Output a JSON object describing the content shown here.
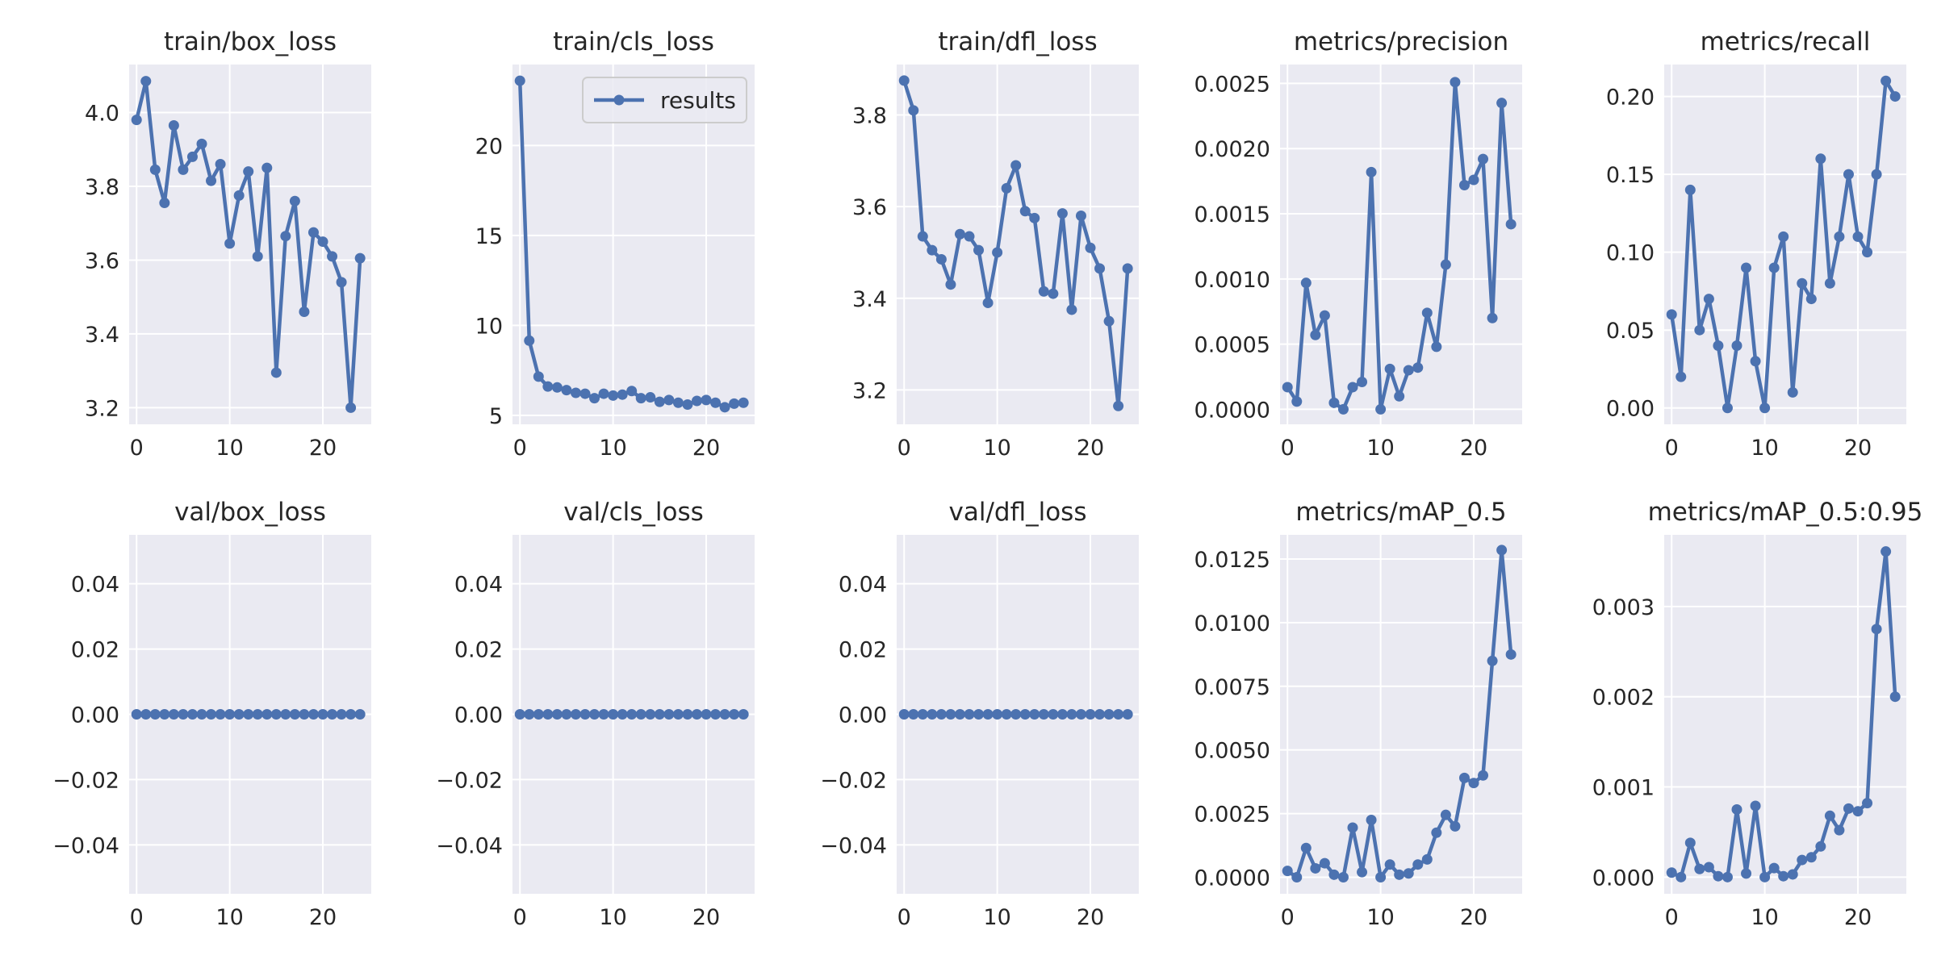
{
  "figure": {
    "line_color": "#4c72b0",
    "axes_bg": "#eaeaf2",
    "grid_color": "#ffffff",
    "legend": {
      "label": "results",
      "panel": 1,
      "placement": "upper right"
    }
  },
  "chart_data": [
    {
      "type": "line",
      "title": "train/box_loss",
      "series_label": "results",
      "x": [
        0,
        1,
        2,
        3,
        4,
        5,
        6,
        7,
        8,
        9,
        10,
        11,
        12,
        13,
        14,
        15,
        16,
        17,
        18,
        19,
        20,
        21,
        22,
        23,
        24
      ],
      "y": [
        3.98,
        4.085,
        3.845,
        3.755,
        3.965,
        3.845,
        3.88,
        3.915,
        3.815,
        3.86,
        3.645,
        3.775,
        3.84,
        3.61,
        3.85,
        3.295,
        3.665,
        3.76,
        3.46,
        3.675,
        3.65,
        3.61,
        3.54,
        3.2,
        3.605
      ],
      "xlim": [
        -0.8,
        25.2
      ],
      "ylim": [
        3.155,
        4.13
      ],
      "xticks": [
        0,
        10,
        20
      ],
      "xtick_labels": [
        "0",
        "10",
        "20"
      ],
      "yticks": [
        3.2,
        3.4,
        3.6,
        3.8,
        4.0
      ],
      "ytick_labels": [
        "3.2",
        "3.4",
        "3.6",
        "3.8",
        "4.0"
      ]
    },
    {
      "type": "line",
      "title": "train/cls_loss",
      "series_label": "results",
      "x": [
        0,
        1,
        2,
        3,
        4,
        5,
        6,
        7,
        8,
        9,
        10,
        11,
        12,
        13,
        14,
        15,
        16,
        17,
        18,
        19,
        20,
        21,
        22,
        23,
        24
      ],
      "y": [
        23.6,
        9.15,
        7.15,
        6.6,
        6.55,
        6.4,
        6.25,
        6.2,
        5.95,
        6.2,
        6.1,
        6.15,
        6.35,
        5.95,
        6.0,
        5.75,
        5.85,
        5.7,
        5.6,
        5.8,
        5.85,
        5.7,
        5.45,
        5.65,
        5.7
      ],
      "xlim": [
        -0.8,
        25.2
      ],
      "ylim": [
        4.5,
        24.5
      ],
      "xticks": [
        0,
        10,
        20
      ],
      "xtick_labels": [
        "0",
        "10",
        "20"
      ],
      "yticks": [
        5,
        10,
        15,
        20
      ],
      "ytick_labels": [
        "5",
        "10",
        "15",
        "20"
      ]
    },
    {
      "type": "line",
      "title": "train/dfl_loss",
      "series_label": "results",
      "x": [
        0,
        1,
        2,
        3,
        4,
        5,
        6,
        7,
        8,
        9,
        10,
        11,
        12,
        13,
        14,
        15,
        16,
        17,
        18,
        19,
        20,
        21,
        22,
        23,
        24
      ],
      "y": [
        3.875,
        3.81,
        3.535,
        3.505,
        3.485,
        3.43,
        3.54,
        3.535,
        3.505,
        3.39,
        3.5,
        3.64,
        3.69,
        3.59,
        3.575,
        3.415,
        3.41,
        3.585,
        3.375,
        3.58,
        3.51,
        3.465,
        3.35,
        3.165,
        3.465
      ],
      "xlim": [
        -0.8,
        25.2
      ],
      "ylim": [
        3.125,
        3.91
      ],
      "xticks": [
        0,
        10,
        20
      ],
      "xtick_labels": [
        "0",
        "10",
        "20"
      ],
      "yticks": [
        3.2,
        3.4,
        3.6,
        3.8
      ],
      "ytick_labels": [
        "3.2",
        "3.4",
        "3.6",
        "3.8"
      ]
    },
    {
      "type": "line",
      "title": "metrics/precision",
      "series_label": "results",
      "x": [
        0,
        1,
        2,
        3,
        4,
        5,
        6,
        7,
        8,
        9,
        10,
        11,
        12,
        13,
        14,
        15,
        16,
        17,
        18,
        19,
        20,
        21,
        22,
        23,
        24
      ],
      "y": [
        0.00017,
        6e-05,
        0.00097,
        0.00057,
        0.00072,
        5e-05,
        0.0,
        0.00017,
        0.00021,
        0.00182,
        0.0,
        0.00031,
        0.0001,
        0.0003,
        0.00032,
        0.00074,
        0.00048,
        0.00111,
        0.00251,
        0.00172,
        0.00176,
        0.00192,
        0.0007,
        0.00235,
        0.00142
      ],
      "xlim": [
        -0.8,
        25.2
      ],
      "ylim": [
        -0.000115,
        0.002645
      ],
      "xticks": [
        0,
        10,
        20
      ],
      "xtick_labels": [
        "0",
        "10",
        "20"
      ],
      "yticks": [
        0.0,
        0.0005,
        0.001,
        0.0015,
        0.002,
        0.0025
      ],
      "ytick_labels": [
        "0.0000",
        "0.0005",
        "0.0010",
        "0.0015",
        "0.0020",
        "0.0025"
      ]
    },
    {
      "type": "line",
      "title": "metrics/recall",
      "series_label": "results",
      "x": [
        0,
        1,
        2,
        3,
        4,
        5,
        6,
        7,
        8,
        9,
        10,
        11,
        12,
        13,
        14,
        15,
        16,
        17,
        18,
        19,
        20,
        21,
        22,
        23,
        24
      ],
      "y": [
        0.06,
        0.02,
        0.14,
        0.05,
        0.07,
        0.04,
        0.0,
        0.04,
        0.09,
        0.03,
        0.0,
        0.09,
        0.11,
        0.01,
        0.08,
        0.07,
        0.16,
        0.08,
        0.11,
        0.15,
        0.11,
        0.1,
        0.15,
        0.21,
        0.2
      ],
      "xlim": [
        -0.8,
        25.2
      ],
      "ylim": [
        -0.0105,
        0.2205
      ],
      "xticks": [
        0,
        10,
        20
      ],
      "xtick_labels": [
        "0",
        "10",
        "20"
      ],
      "yticks": [
        0.0,
        0.05,
        0.1,
        0.15,
        0.2
      ],
      "ytick_labels": [
        "0.00",
        "0.05",
        "0.10",
        "0.15",
        "0.20"
      ]
    },
    {
      "type": "line",
      "title": "val/box_loss",
      "series_label": "results",
      "x": [
        0,
        1,
        2,
        3,
        4,
        5,
        6,
        7,
        8,
        9,
        10,
        11,
        12,
        13,
        14,
        15,
        16,
        17,
        18,
        19,
        20,
        21,
        22,
        23,
        24
      ],
      "y": [
        0,
        0,
        0,
        0,
        0,
        0,
        0,
        0,
        0,
        0,
        0,
        0,
        0,
        0,
        0,
        0,
        0,
        0,
        0,
        0,
        0,
        0,
        0,
        0,
        0
      ],
      "xlim": [
        -0.8,
        25.2
      ],
      "ylim": [
        -0.055,
        0.055
      ],
      "xticks": [
        0,
        10,
        20
      ],
      "xtick_labels": [
        "0",
        "10",
        "20"
      ],
      "yticks": [
        -0.04,
        -0.02,
        0.0,
        0.02,
        0.04
      ],
      "ytick_labels": [
        "−0.04",
        "−0.02",
        "0.00",
        "0.02",
        "0.04"
      ]
    },
    {
      "type": "line",
      "title": "val/cls_loss",
      "series_label": "results",
      "x": [
        0,
        1,
        2,
        3,
        4,
        5,
        6,
        7,
        8,
        9,
        10,
        11,
        12,
        13,
        14,
        15,
        16,
        17,
        18,
        19,
        20,
        21,
        22,
        23,
        24
      ],
      "y": [
        0,
        0,
        0,
        0,
        0,
        0,
        0,
        0,
        0,
        0,
        0,
        0,
        0,
        0,
        0,
        0,
        0,
        0,
        0,
        0,
        0,
        0,
        0,
        0,
        0
      ],
      "xlim": [
        -0.8,
        25.2
      ],
      "ylim": [
        -0.055,
        0.055
      ],
      "xticks": [
        0,
        10,
        20
      ],
      "xtick_labels": [
        "0",
        "10",
        "20"
      ],
      "yticks": [
        -0.04,
        -0.02,
        0.0,
        0.02,
        0.04
      ],
      "ytick_labels": [
        "−0.04",
        "−0.02",
        "0.00",
        "0.02",
        "0.04"
      ]
    },
    {
      "type": "line",
      "title": "val/dfl_loss",
      "series_label": "results",
      "x": [
        0,
        1,
        2,
        3,
        4,
        5,
        6,
        7,
        8,
        9,
        10,
        11,
        12,
        13,
        14,
        15,
        16,
        17,
        18,
        19,
        20,
        21,
        22,
        23,
        24
      ],
      "y": [
        0,
        0,
        0,
        0,
        0,
        0,
        0,
        0,
        0,
        0,
        0,
        0,
        0,
        0,
        0,
        0,
        0,
        0,
        0,
        0,
        0,
        0,
        0,
        0,
        0
      ],
      "xlim": [
        -0.8,
        25.2
      ],
      "ylim": [
        -0.055,
        0.055
      ],
      "xticks": [
        0,
        10,
        20
      ],
      "xtick_labels": [
        "0",
        "10",
        "20"
      ],
      "yticks": [
        -0.04,
        -0.02,
        0.0,
        0.02,
        0.04
      ],
      "ytick_labels": [
        "−0.04",
        "−0.02",
        "0.00",
        "0.02",
        "0.04"
      ]
    },
    {
      "type": "line",
      "title": "metrics/mAP_0.5",
      "series_label": "results",
      "x": [
        0,
        1,
        2,
        3,
        4,
        5,
        6,
        7,
        8,
        9,
        10,
        11,
        12,
        13,
        14,
        15,
        16,
        17,
        18,
        19,
        20,
        21,
        22,
        23,
        24
      ],
      "y": [
        0.00025,
        0.0,
        0.00115,
        0.00035,
        0.00055,
        0.0001,
        0.0,
        0.00195,
        0.0002,
        0.00225,
        0.0,
        0.0005,
        0.0001,
        0.00015,
        0.0005,
        0.0007,
        0.00175,
        0.00245,
        0.002,
        0.0039,
        0.0037,
        0.004,
        0.0085,
        0.01285,
        0.00875
      ],
      "xlim": [
        -0.8,
        25.2
      ],
      "ylim": [
        -0.00065,
        0.01345
      ],
      "xticks": [
        0,
        10,
        20
      ],
      "xtick_labels": [
        "0",
        "10",
        "20"
      ],
      "yticks": [
        0.0,
        0.0025,
        0.005,
        0.0075,
        0.01,
        0.0125
      ],
      "ytick_labels": [
        "0.0000",
        "0.0025",
        "0.0050",
        "0.0075",
        "0.0100",
        "0.0125"
      ]
    },
    {
      "type": "line",
      "title": "metrics/mAP_0.5:0.95",
      "series_label": "results",
      "x": [
        0,
        1,
        2,
        3,
        4,
        5,
        6,
        7,
        8,
        9,
        10,
        11,
        12,
        13,
        14,
        15,
        16,
        17,
        18,
        19,
        20,
        21,
        22,
        23,
        24
      ],
      "y": [
        5e-05,
        0.0,
        0.00038,
        9e-05,
        0.00011,
        1e-05,
        0.0,
        0.00075,
        4e-05,
        0.00079,
        0.0,
        0.0001,
        1e-05,
        3e-05,
        0.00019,
        0.00022,
        0.00034,
        0.00068,
        0.00052,
        0.00076,
        0.00073,
        0.00082,
        0.00275,
        0.00361,
        0.002
      ],
      "xlim": [
        -0.8,
        25.2
      ],
      "ylim": [
        -0.000185,
        0.003795
      ],
      "xticks": [
        0,
        10,
        20
      ],
      "xtick_labels": [
        "0",
        "10",
        "20"
      ],
      "yticks": [
        0.0,
        0.001,
        0.002,
        0.003
      ],
      "ytick_labels": [
        "0.000",
        "0.001",
        "0.002",
        "0.003"
      ]
    }
  ]
}
